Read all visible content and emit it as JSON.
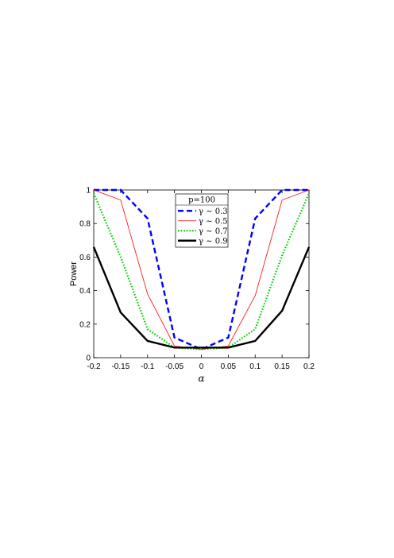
{
  "chart_data": {
    "type": "line",
    "xlabel": "α",
    "ylabel": "Power",
    "xlim": [
      -0.2,
      0.2
    ],
    "ylim": [
      0,
      1
    ],
    "xticks": [
      "-0.2",
      "-0.15",
      "-0.1",
      "-0.05",
      "0",
      "0.05",
      "0.1",
      "0.15",
      "0.2"
    ],
    "yticks": [
      "0",
      "0.2",
      "0.4",
      "0.6",
      "0.8",
      "1"
    ],
    "grid": false,
    "legend_position": "top-center",
    "legend_title": "p=100",
    "x": [
      -0.2,
      -0.15,
      -0.1,
      -0.05,
      0,
      0.05,
      0.1,
      0.15,
      0.2
    ],
    "series": [
      {
        "name": "γ ∼ 0.3",
        "color": "#0000ff",
        "style": "dashed",
        "values": [
          1.0,
          1.0,
          0.83,
          0.12,
          0.05,
          0.12,
          0.83,
          1.0,
          1.0
        ]
      },
      {
        "name": "γ ∼ 0.5",
        "color": "#ff0000",
        "style": "solid-thin",
        "values": [
          1.0,
          0.94,
          0.38,
          0.07,
          0.05,
          0.07,
          0.37,
          0.94,
          1.0
        ]
      },
      {
        "name": "γ ∼ 0.7",
        "color": "#00cc00",
        "style": "dotted",
        "values": [
          0.98,
          0.6,
          0.17,
          0.06,
          0.05,
          0.06,
          0.17,
          0.61,
          0.98
        ]
      },
      {
        "name": "γ ∼ 0.9",
        "color": "#000000",
        "style": "solid-thick",
        "values": [
          0.66,
          0.27,
          0.1,
          0.06,
          0.06,
          0.06,
          0.1,
          0.28,
          0.66
        ]
      }
    ]
  }
}
